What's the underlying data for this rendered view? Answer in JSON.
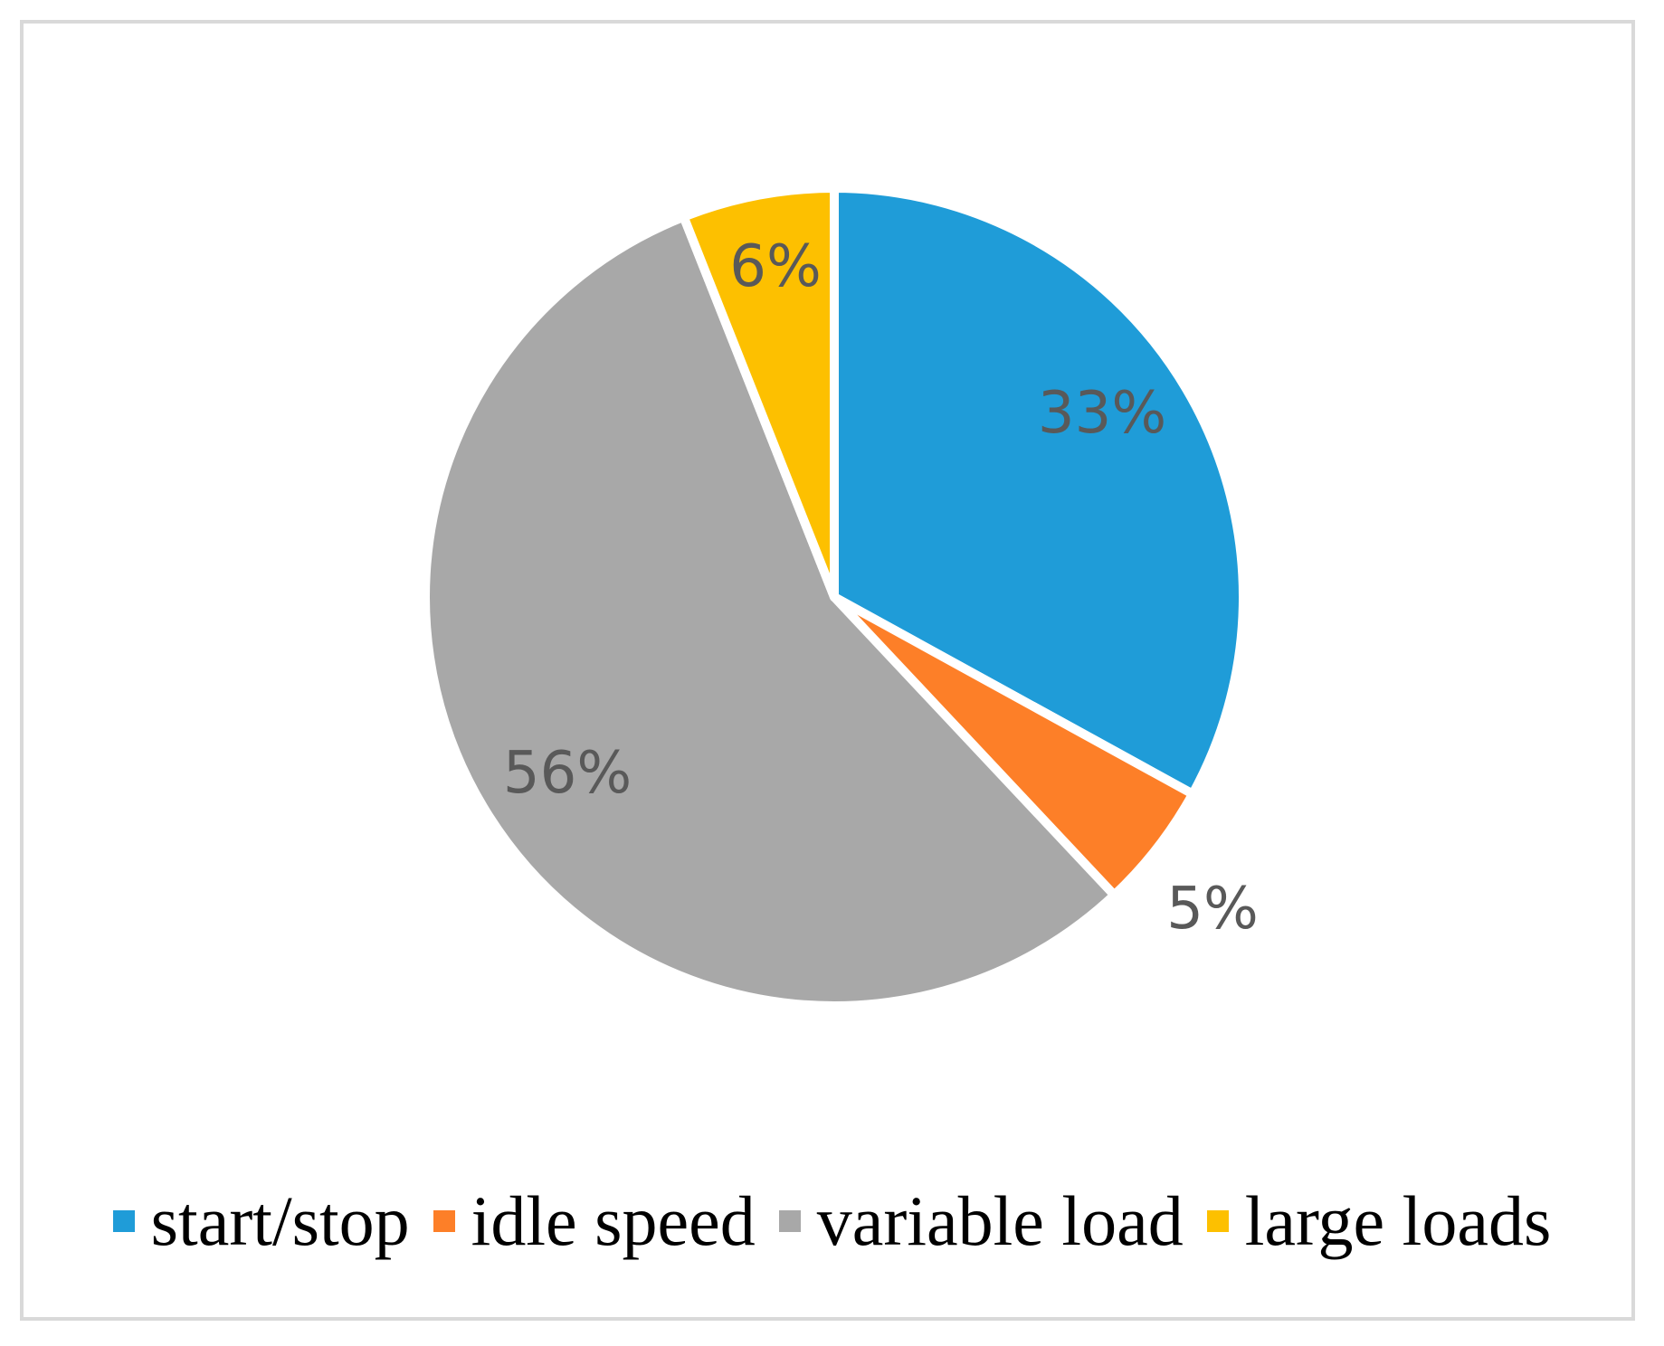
{
  "chart_data": {
    "type": "pie",
    "categories": [
      "start/stop",
      "idle speed",
      "variable load",
      "large loads"
    ],
    "values": [
      33,
      5,
      56,
      6
    ],
    "labels": [
      "33%",
      "5%",
      "56%",
      "6%"
    ],
    "colors": [
      "#1f9cd8",
      "#fd7f28",
      "#a8a8a8",
      "#fdc000"
    ],
    "legend_position": "bottom"
  }
}
